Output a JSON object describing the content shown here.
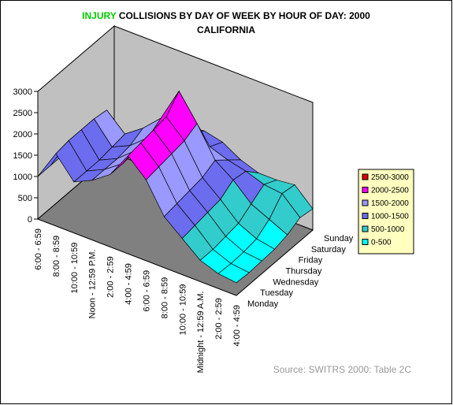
{
  "chart_data": {
    "type": "surface",
    "title": [
      "INJURY",
      "COLLISIONS BY DAY OF WEEK BY HOUR OF DAY:  2000",
      "CALIFORNIA"
    ],
    "title_color": "#00cc00",
    "categories": [
      "6:00 - 6:59",
      "8:00 - 8:59",
      "10:00 - 10:59",
      "Noon - 12:59 P.M.",
      "2:00 - 2:59",
      "4:00 - 4:59",
      "6:00 - 6:59",
      "8:00 - 8:59",
      "10:00 - 10:59",
      "Midnight - 12:59 A.M.",
      "2:00 - 2:59",
      "4:00 - 4:59"
    ],
    "series": [
      {
        "name": "Monday",
        "values": [
          1000,
          1700,
          1200,
          1400,
          1700,
          2300,
          1900,
          1200,
          850,
          500,
          350,
          300
        ]
      },
      {
        "name": "Tuesday",
        "values": [
          1000,
          1750,
          1200,
          1400,
          1700,
          2350,
          1950,
          1250,
          900,
          500,
          330,
          280
        ]
      },
      {
        "name": "Wednesday",
        "values": [
          1000,
          1750,
          1200,
          1400,
          1750,
          2400,
          2000,
          1300,
          950,
          550,
          350,
          300
        ]
      },
      {
        "name": "Thursday",
        "values": [
          1000,
          1750,
          1250,
          1450,
          1800,
          2450,
          2050,
          1350,
          1000,
          600,
          400,
          320
        ]
      },
      {
        "name": "Friday",
        "values": [
          1000,
          1700,
          1300,
          1600,
          2000,
          2800,
          2200,
          1500,
          1200,
          800,
          600,
          400
        ]
      },
      {
        "name": "Saturday",
        "values": [
          450,
          700,
          1050,
          1350,
          1500,
          1550,
          1400,
          1250,
          1150,
          1000,
          950,
          550
        ]
      },
      {
        "name": "Sunday",
        "values": [
          350,
          500,
          800,
          1150,
          1300,
          1350,
          1250,
          1000,
          850,
          850,
          900,
          500
        ]
      }
    ],
    "zlim": [
      0,
      3000
    ],
    "zticks": [
      0,
      500,
      1000,
      1500,
      2000,
      2500,
      3000
    ],
    "legend": [
      {
        "name": "2500-3000",
        "color": "#dd0000"
      },
      {
        "name": "2000-2500",
        "color": "#ff00ff"
      },
      {
        "name": "1500-2000",
        "color": "#9999ff"
      },
      {
        "name": "1000-1500",
        "color": "#6c6cee"
      },
      {
        "name": "500-1000",
        "color": "#33cccc"
      },
      {
        "name": "0-500",
        "color": "#00ffff"
      }
    ],
    "source": "Source: SWITRS 2000: Table 2C"
  }
}
